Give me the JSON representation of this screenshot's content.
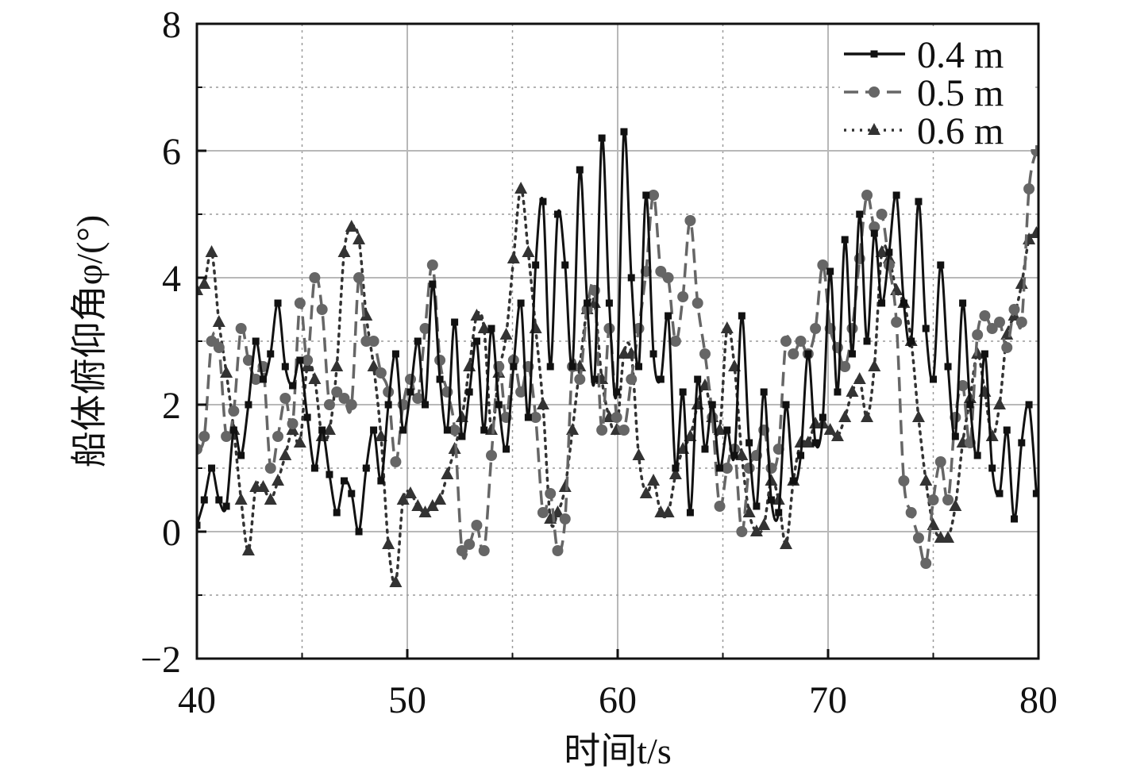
{
  "chart_data": {
    "type": "line",
    "title": "",
    "xlabel": "时间t/s",
    "ylabel": "船体俯仰角φ/(°)",
    "xlim": [
      40,
      80
    ],
    "ylim": [
      -2,
      8
    ],
    "xticks": [
      40,
      50,
      60,
      70,
      80
    ],
    "xtick_labels": [
      "40",
      "50",
      "60",
      "70",
      "80"
    ],
    "yticks": [
      -2,
      0,
      2,
      4,
      6,
      8
    ],
    "ytick_labels": [
      "−2",
      "0",
      "2",
      "4",
      "6",
      "8"
    ],
    "grid": true,
    "legend_position": "top-right",
    "series": [
      {
        "name": "0.4 m",
        "color": "#111111",
        "line_style": "solid",
        "marker": "square",
        "x": [
          40.0,
          40.35,
          40.7,
          41.05,
          41.4,
          41.75,
          42.1,
          42.45,
          42.8,
          43.15,
          43.5,
          43.85,
          44.2,
          44.55,
          44.9,
          45.25,
          45.6,
          45.95,
          46.3,
          46.65,
          47.0,
          47.35,
          47.7,
          48.05,
          48.4,
          48.75,
          49.1,
          49.45,
          49.8,
          50.15,
          50.5,
          50.85,
          51.2,
          51.55,
          51.9,
          52.25,
          52.6,
          52.95,
          53.3,
          53.65,
          54.0,
          54.35,
          54.7,
          55.05,
          55.4,
          55.75,
          56.1,
          56.45,
          56.8,
          57.15,
          57.5,
          57.85,
          58.2,
          58.55,
          58.9,
          59.25,
          59.6,
          59.95,
          60.3,
          60.65,
          61.0,
          61.35,
          61.7,
          62.05,
          62.4,
          62.75,
          63.1,
          63.45,
          63.8,
          64.15,
          64.5,
          64.85,
          65.2,
          65.55,
          65.9,
          66.25,
          66.6,
          66.95,
          67.3,
          67.65,
          68.0,
          68.35,
          68.7,
          69.05,
          69.4,
          69.75,
          70.1,
          70.45,
          70.8,
          71.15,
          71.5,
          71.85,
          72.2,
          72.55,
          72.9,
          73.25,
          73.6,
          73.95,
          74.3,
          74.65,
          75.0,
          75.35,
          75.7,
          76.05,
          76.4,
          76.75,
          77.1,
          77.45,
          77.8,
          78.15,
          78.5,
          78.85,
          79.2,
          79.55,
          79.9
        ],
        "y": [
          0.1,
          0.5,
          1.0,
          0.5,
          0.4,
          1.6,
          1.2,
          2.0,
          3.0,
          2.4,
          2.8,
          3.6,
          2.6,
          2.3,
          2.7,
          1.8,
          1.0,
          1.6,
          0.9,
          0.3,
          0.8,
          0.6,
          0.0,
          1.0,
          1.6,
          0.8,
          2.0,
          2.8,
          1.6,
          2.2,
          3.0,
          2.0,
          3.9,
          2.4,
          1.6,
          3.3,
          1.5,
          2.2,
          3.0,
          1.6,
          3.2,
          2.0,
          1.3,
          2.6,
          3.6,
          1.8,
          4.2,
          5.2,
          2.6,
          5.0,
          4.2,
          2.6,
          5.7,
          3.6,
          2.4,
          6.2,
          3.6,
          2.2,
          6.3,
          4.0,
          2.6,
          5.3,
          2.8,
          2.4,
          3.4,
          1.0,
          2.2,
          0.3,
          2.4,
          1.3,
          2.0,
          1.0,
          1.6,
          1.2,
          3.4,
          1.4,
          0.4,
          2.2,
          0.5,
          0.3,
          2.0,
          0.8,
          1.2,
          2.8,
          1.4,
          1.8,
          4.1,
          2.2,
          4.6,
          2.8,
          5.0,
          3.0,
          4.7,
          3.6,
          4.4,
          5.3,
          3.6,
          3.0,
          5.2,
          3.2,
          2.4,
          4.2,
          2.6,
          1.5,
          3.6,
          2.0,
          1.2,
          2.8,
          1.0,
          0.6,
          1.6,
          0.2,
          1.4,
          2.0,
          0.6
        ]
      },
      {
        "name": "0.5 m",
        "color": "#666666",
        "line_style": "dashed",
        "marker": "circle",
        "x": [
          40.0,
          40.35,
          40.7,
          41.05,
          41.4,
          41.75,
          42.1,
          42.45,
          42.8,
          43.15,
          43.5,
          43.85,
          44.2,
          44.55,
          44.9,
          45.25,
          45.6,
          45.95,
          46.3,
          46.65,
          47.0,
          47.35,
          47.7,
          48.05,
          48.4,
          48.75,
          49.1,
          49.45,
          49.8,
          50.15,
          50.5,
          50.85,
          51.2,
          51.55,
          51.9,
          52.25,
          52.6,
          52.95,
          53.3,
          53.65,
          54.0,
          54.35,
          54.7,
          55.05,
          55.4,
          55.75,
          56.1,
          56.45,
          56.8,
          57.15,
          57.5,
          57.85,
          58.2,
          58.55,
          58.9,
          59.25,
          59.6,
          59.95,
          60.3,
          60.65,
          61.0,
          61.35,
          61.7,
          62.05,
          62.4,
          62.75,
          63.1,
          63.45,
          63.8,
          64.15,
          64.5,
          64.85,
          65.2,
          65.55,
          65.9,
          66.25,
          66.6,
          66.95,
          67.3,
          67.65,
          68.0,
          68.35,
          68.7,
          69.05,
          69.4,
          69.75,
          70.1,
          70.45,
          70.8,
          71.15,
          71.5,
          71.85,
          72.2,
          72.55,
          72.9,
          73.25,
          73.6,
          73.95,
          74.3,
          74.65,
          75.0,
          75.35,
          75.7,
          76.05,
          76.4,
          76.75,
          77.1,
          77.45,
          77.8,
          78.15,
          78.5,
          78.85,
          79.2,
          79.55,
          79.9
        ],
        "y": [
          1.3,
          1.5,
          3.0,
          2.9,
          1.5,
          1.9,
          3.2,
          2.7,
          2.4,
          2.6,
          1.0,
          1.5,
          2.1,
          1.7,
          3.6,
          2.7,
          4.0,
          3.5,
          2.0,
          2.2,
          2.1,
          2.0,
          4.0,
          3.0,
          3.0,
          2.5,
          2.2,
          1.1,
          2.0,
          2.4,
          2.1,
          3.2,
          4.2,
          2.7,
          2.2,
          1.6,
          -0.3,
          -0.2,
          0.1,
          -0.3,
          1.2,
          2.6,
          1.8,
          2.7,
          2.2,
          2.6,
          1.8,
          0.3,
          0.6,
          -0.3,
          0.2,
          2.6,
          2.4,
          3.5,
          3.8,
          1.6,
          3.2,
          1.8,
          1.6,
          2.4,
          3.2,
          4.1,
          5.3,
          4.1,
          4.0,
          3.0,
          3.7,
          4.9,
          3.6,
          2.8,
          1.8,
          0.4,
          1.0,
          1.3,
          0.0,
          1.0,
          1.2,
          1.6,
          1.0,
          1.3,
          3.0,
          2.8,
          3.0,
          2.8,
          3.2,
          4.2,
          3.2,
          2.9,
          2.6,
          3.2,
          4.3,
          5.3,
          4.8,
          5.0,
          4.2,
          3.3,
          0.8,
          0.3,
          -0.1,
          -0.5,
          0.5,
          1.1,
          0.5,
          1.8,
          2.3,
          1.4,
          3.1,
          3.4,
          3.2,
          3.3,
          2.9,
          3.5,
          3.3,
          5.4,
          6.0
        ]
      },
      {
        "name": "0.6 m",
        "color": "#333333",
        "line_style": "dotted",
        "marker": "triangle",
        "x": [
          40.0,
          40.35,
          40.7,
          41.05,
          41.4,
          41.75,
          42.1,
          42.45,
          42.8,
          43.15,
          43.5,
          43.85,
          44.2,
          44.55,
          44.9,
          45.25,
          45.6,
          45.95,
          46.3,
          46.65,
          47.0,
          47.35,
          47.7,
          48.05,
          48.4,
          48.75,
          49.1,
          49.45,
          49.8,
          50.15,
          50.5,
          50.85,
          51.2,
          51.55,
          51.9,
          52.25,
          52.6,
          52.95,
          53.3,
          53.65,
          54.0,
          54.35,
          54.7,
          55.05,
          55.4,
          55.75,
          56.1,
          56.45,
          56.8,
          57.15,
          57.5,
          57.85,
          58.2,
          58.55,
          58.9,
          59.25,
          59.6,
          59.95,
          60.3,
          60.65,
          61.0,
          61.35,
          61.7,
          62.05,
          62.4,
          62.75,
          63.1,
          63.45,
          63.8,
          64.15,
          64.5,
          64.85,
          65.2,
          65.55,
          65.9,
          66.25,
          66.6,
          66.95,
          67.3,
          67.65,
          68.0,
          68.35,
          68.7,
          69.05,
          69.4,
          69.75,
          70.1,
          70.45,
          70.8,
          71.15,
          71.5,
          71.85,
          72.2,
          72.55,
          72.9,
          73.25,
          73.6,
          73.95,
          74.3,
          74.65,
          75.0,
          75.35,
          75.7,
          76.05,
          76.4,
          76.75,
          77.1,
          77.45,
          77.8,
          78.15,
          78.5,
          78.85,
          79.2,
          79.55,
          79.9
        ],
        "y": [
          3.8,
          3.9,
          4.4,
          3.3,
          2.5,
          1.6,
          0.5,
          -0.3,
          0.7,
          0.7,
          0.5,
          0.8,
          1.2,
          1.6,
          1.4,
          2.6,
          2.4,
          1.5,
          1.6,
          2.6,
          4.4,
          4.8,
          4.6,
          3.4,
          2.6,
          1.5,
          -0.2,
          -0.8,
          0.5,
          0.6,
          0.4,
          0.3,
          0.4,
          0.5,
          0.9,
          1.3,
          1.8,
          2.6,
          3.4,
          3.2,
          1.6,
          2.5,
          3.1,
          4.3,
          5.4,
          4.4,
          3.2,
          2.0,
          0.2,
          0.3,
          0.7,
          1.6,
          2.6,
          3.5,
          3.6,
          2.4,
          1.8,
          1.6,
          2.8,
          2.8,
          1.2,
          0.6,
          0.8,
          0.3,
          0.3,
          0.9,
          1.3,
          1.5,
          2.0,
          2.3,
          1.8,
          1.6,
          3.2,
          2.6,
          1.2,
          0.3,
          0.0,
          0.1,
          0.8,
          0.5,
          -0.2,
          0.8,
          1.4,
          1.4,
          1.7,
          1.7,
          1.6,
          1.5,
          1.8,
          2.2,
          2.4,
          1.8,
          2.6,
          4.4,
          4.3,
          3.8,
          3.6,
          3.0,
          1.8,
          0.8,
          0.1,
          -0.1,
          -0.1,
          0.4,
          1.4,
          2.1,
          2.8,
          2.2,
          1.5,
          2.0,
          3.1,
          3.4,
          3.9,
          4.6,
          4.7
        ]
      }
    ]
  }
}
